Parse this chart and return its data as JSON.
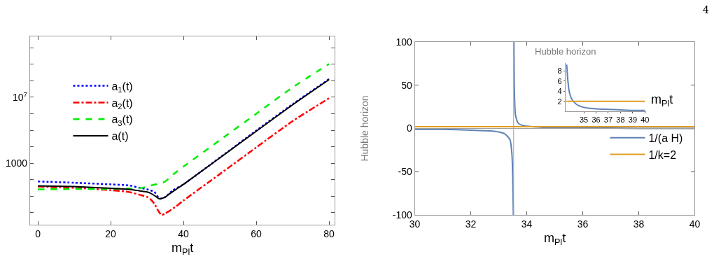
{
  "chart_data": [
    {
      "type": "line",
      "xlabel": "m$_{Pl}$t",
      "log": "y",
      "xlim": [
        -2.16,
        81.6
      ],
      "ylim": [
        0.186,
        50000000000
      ],
      "xticks": [
        0,
        20,
        40,
        60,
        80
      ],
      "yticks": [
        {
          "value": 1,
          "label": null
        },
        {
          "value": 10,
          "label": null
        },
        {
          "value": 100,
          "label": null
        },
        1000,
        {
          "value": 10000,
          "label": null
        },
        {
          "value": 100000,
          "label": null
        },
        {
          "value": 1000000,
          "label": null
        },
        {
          "value": 10000000,
          "label": "10$^{7}$"
        },
        {
          "value": 100000000,
          "label": null
        },
        {
          "value": 1000000000,
          "label": null
        },
        {
          "value": 10000000000,
          "label": null
        }
      ],
      "legend": "top left",
      "marker": "none",
      "series": [
        {
          "name": "a$_{1}$(t)",
          "color": "#0000ff",
          "line_style": "dotted",
          "x": [
            0,
            10,
            20,
            25,
            28,
            30,
            32,
            33.5,
            35,
            37,
            40,
            50,
            60,
            70,
            80
          ],
          "values": [
            78,
            65,
            52,
            45,
            32,
            26,
            18,
            7,
            9,
            22,
            52,
            2200,
            95000,
            3800000,
            126000000
          ]
        },
        {
          "name": "a$_{2}$(t)",
          "color": "#ff0000",
          "line_style": "dashdot",
          "x": [
            0,
            10,
            20,
            25,
            28,
            30,
            31,
            32,
            33,
            34,
            35,
            36,
            38,
            40,
            50,
            60,
            70,
            80
          ],
          "values": [
            38,
            32,
            23,
            18,
            12,
            9,
            6.3,
            3.5,
            1.4,
            0.71,
            0.9,
            1.2,
            2.4,
            5.4,
            220,
            9000,
            360000,
            8700000
          ]
        },
        {
          "name": "a$_{3}$(t)",
          "color": "#00ee00",
          "line_style": "dashed",
          "x": [
            0,
            10,
            20,
            28,
            30,
            32,
            34,
            35,
            36,
            38,
            40,
            50,
            60,
            70,
            80
          ],
          "values": [
            26,
            27,
            28,
            30,
            38,
            50,
            62,
            78,
            120,
            290,
            620,
            25000,
            1000000,
            40000000,
            1050000000
          ]
        },
        {
          "name": "a(t)",
          "color": "#000000",
          "line_style": "solid",
          "x": [
            0,
            10,
            20,
            25,
            28,
            30,
            31,
            32,
            33,
            33.5,
            34,
            35,
            36,
            38,
            40,
            50,
            60,
            70,
            80
          ],
          "values": [
            42,
            38,
            30,
            26,
            21,
            18,
            15,
            11,
            7.6,
            6.9,
            7.2,
            8.7,
            13,
            26,
            52,
            2100,
            87000,
            3500000,
            118000000
          ]
        }
      ]
    },
    {
      "type": "line",
      "xlabel": "m$_{Pl}$t",
      "ylabel": "Hubble horizon",
      "xlim": [
        30,
        40
      ],
      "ylim": [
        -100,
        100
      ],
      "xticks": [
        30,
        32,
        34,
        36,
        38,
        40
      ],
      "yticks": [
        -100,
        -50,
        0,
        50,
        100
      ],
      "legend": "bottom right",
      "marker": "none",
      "annotations": [
        "4"
      ],
      "ref_lines": [
        {
          "axis": "y",
          "value": 0,
          "color": "#a0a0a0"
        },
        {
          "axis": "x",
          "value": 33.53,
          "color": "#a0a0a0"
        }
      ],
      "series": [
        {
          "name": "1/(a H)",
          "color": "#5e81b5",
          "line_style": "solid",
          "x": [
            30,
            31,
            32,
            32.8,
            33.2,
            33.4,
            33.47,
            33.5,
            33.52,
            33.525,
            33.53,
            33.535,
            33.54,
            33.56,
            33.6,
            33.7,
            33.9,
            34.2,
            35,
            36,
            38,
            40
          ],
          "values": [
            -1,
            -1,
            -2,
            -3,
            -6,
            -13,
            -30,
            -60,
            -100,
            null,
            null,
            null,
            100,
            40,
            15,
            6,
            3,
            2,
            1,
            1,
            0,
            0
          ]
        },
        {
          "name": "1/k=2",
          "color": "#e19c24",
          "line_style": "solid",
          "x": [
            30,
            40
          ],
          "values": [
            2,
            2
          ]
        }
      ]
    },
    {
      "type": "line",
      "title": "Hubble horizon",
      "xlabel": "m$_{Pl}$t",
      "xlim": [
        33.5,
        40.1
      ],
      "ylim": [
        0,
        9.6
      ],
      "xticks": [
        35,
        36,
        37,
        38,
        39,
        40
      ],
      "yticks": [
        2,
        4,
        6,
        8
      ],
      "legend": false,
      "marker": "none",
      "series": [
        {
          "color": "#5e81b5",
          "line_style": "solid",
          "x": [
            33.6,
            33.65,
            33.7,
            33.8,
            34,
            34.3,
            34.6,
            35,
            35.5,
            36,
            37,
            38,
            39,
            40
          ],
          "values": [
            9.3,
            7.5,
            6,
            4,
            2.5,
            1.6,
            1.1,
            0.8,
            0.6,
            0.5,
            0.4,
            0.3,
            0.2,
            0.2
          ]
        },
        {
          "color": "#e19c24",
          "line_style": "solid",
          "x": [
            33.55,
            40
          ],
          "values": [
            2,
            2
          ]
        }
      ]
    }
  ]
}
